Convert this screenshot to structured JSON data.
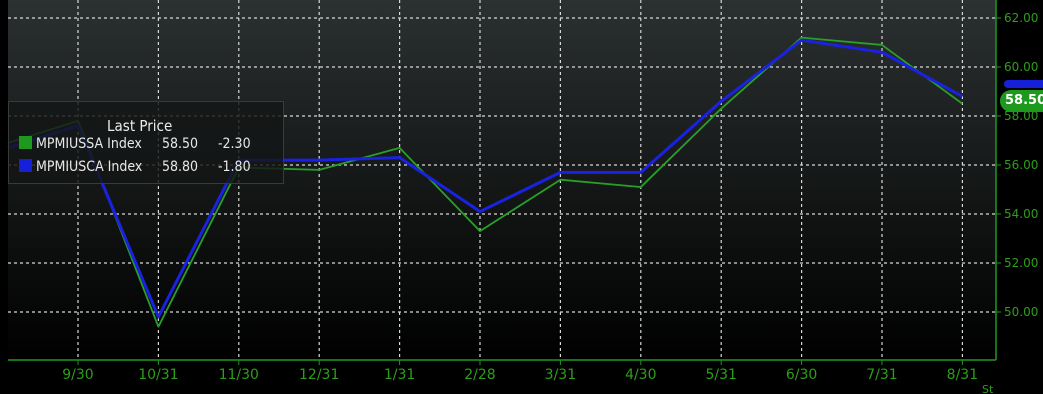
{
  "colors": {
    "background_top": "#2b3030",
    "background_bottom": "#000000",
    "grid": "#d8d8d8",
    "axis": "#1d9a1d",
    "tick_text": "#2e9e1a",
    "series_green": "#28a028",
    "series_blue": "#1a22e0"
  },
  "legend": {
    "title": "Last Price",
    "rows": [
      {
        "name": "MPMIUSSA Index",
        "last": "58.50",
        "change": "-2.30",
        "color": "#1d9a1d"
      },
      {
        "name": "MPMIUSCA Index",
        "last": "58.80",
        "change": "-1.80",
        "color": "#1520d8"
      }
    ]
  },
  "last_price_tag": "58.50",
  "chart_data": {
    "type": "line",
    "categories": [
      "9/30",
      "10/31",
      "11/30",
      "12/31",
      "1/31",
      "2/28",
      "3/31",
      "4/30",
      "5/31",
      "6/30",
      "7/31",
      "8/31"
    ],
    "x_partial_label": "St",
    "y_ticks": [
      "50.00",
      "52.00",
      "54.00",
      "56.00",
      "58.00",
      "60.00",
      "62.00"
    ],
    "ylim": [
      48.2,
      62.3
    ],
    "grid": true,
    "legend_position": "left",
    "series": [
      {
        "name": "MPMIUSSA Index",
        "color": "#28a028",
        "values": [
          57.8,
          49.4,
          55.9,
          55.8,
          56.7,
          53.3,
          55.4,
          55.1,
          58.3,
          61.2,
          60.9,
          58.5
        ]
      },
      {
        "name": "MPMIUSCA Index",
        "color": "#1a22e0",
        "values": [
          57.6,
          49.8,
          56.2,
          56.2,
          56.3,
          54.1,
          55.7,
          55.7,
          58.6,
          61.1,
          60.6,
          58.8
        ]
      }
    ]
  }
}
